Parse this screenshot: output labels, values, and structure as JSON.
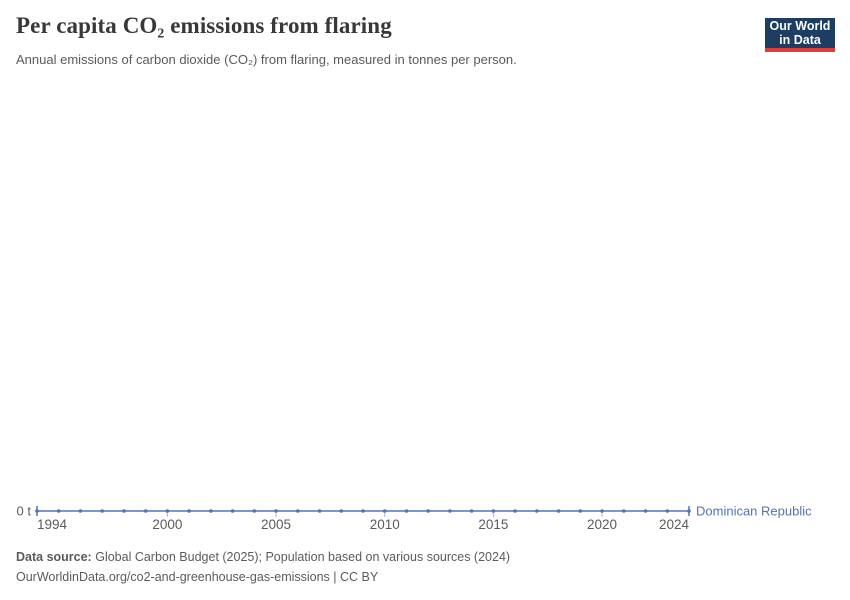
{
  "header": {
    "title": "Per capita CO₂ emissions from flaring",
    "subtitle": "Annual emissions of carbon dioxide (CO₂) from flaring, measured in tonnes per person.",
    "logo_line1": "Our World",
    "logo_line2": "in Data"
  },
  "chart_data": {
    "type": "line",
    "title": "Per capita CO₂ emissions from flaring",
    "xlabel": "",
    "ylabel": "tonnes per person",
    "xlim": [
      1994,
      2024
    ],
    "ylim": [
      0,
      0
    ],
    "grid": false,
    "legend_position": "end-of-line",
    "x_ticks": [
      1994,
      2000,
      2005,
      2010,
      2015,
      2020,
      2024
    ],
    "y_axis": {
      "tick_label": "0 t",
      "unit": "t"
    },
    "series": [
      {
        "name": "Dominican Republic",
        "color": "#5373b8",
        "x": [
          1994,
          1995,
          1996,
          1997,
          1998,
          1999,
          2000,
          2001,
          2002,
          2003,
          2004,
          2005,
          2006,
          2007,
          2008,
          2009,
          2010,
          2011,
          2012,
          2013,
          2014,
          2015,
          2016,
          2017,
          2018,
          2019,
          2020,
          2021,
          2022,
          2023,
          2024
        ],
        "values": [
          0,
          0,
          0,
          0,
          0,
          0,
          0,
          0,
          0,
          0,
          0,
          0,
          0,
          0,
          0,
          0,
          0,
          0,
          0,
          0,
          0,
          0,
          0,
          0,
          0,
          0,
          0,
          0,
          0,
          0,
          0
        ]
      }
    ]
  },
  "footer": {
    "data_source_label": "Data source:",
    "data_source_text": "Global Carbon Budget (2025); Population based on various sources (2024)",
    "attribution": "OurWorldinData.org/co2-and-greenhouse-gas-emissions | CC BY"
  },
  "colors": {
    "line": "#5373b8",
    "axis_text": "#5b5b5b",
    "tick": "#a8b6d0",
    "title_text": "#383838",
    "subtitle_text": "#5a5a5a",
    "logo_background": "#1d3d63",
    "logo_accent": "#dc3e35"
  }
}
